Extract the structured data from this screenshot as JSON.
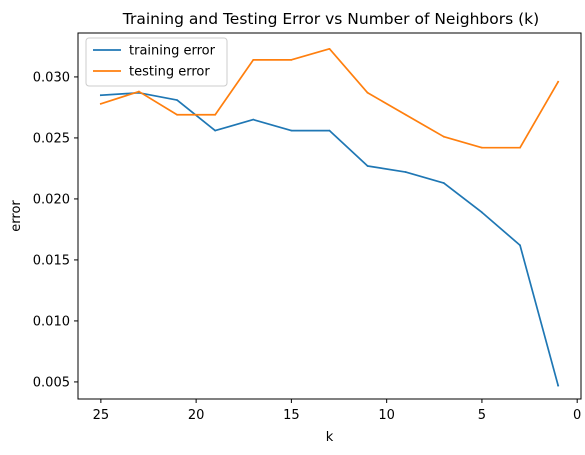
{
  "chart_data": {
    "type": "line",
    "title": "Training and Testing Error vs Number of Neighbors (k)",
    "xlabel": "k",
    "ylabel": "error",
    "x_inverted": true,
    "xlim": [
      26.2,
      -0.2
    ],
    "ylim": [
      0.0036,
      0.0336
    ],
    "xticks": [
      25,
      20,
      15,
      10,
      5,
      0
    ],
    "xtick_labels": [
      "25",
      "20",
      "15",
      "10",
      "5",
      "0"
    ],
    "yticks": [
      0.005,
      0.01,
      0.015,
      0.02,
      0.025,
      0.03
    ],
    "ytick_labels": [
      "0.005",
      "0.010",
      "0.015",
      "0.020",
      "0.025",
      "0.030"
    ],
    "grid": false,
    "legend_position": "upper-left",
    "x": [
      25,
      23,
      21,
      19,
      17,
      15,
      13,
      11,
      9,
      7,
      5,
      3,
      1
    ],
    "series": [
      {
        "name": "training error",
        "color": "#1f77b4",
        "values": [
          0.0285,
          0.0287,
          0.0281,
          0.0256,
          0.0265,
          0.0256,
          0.0256,
          0.0227,
          0.0222,
          0.0213,
          0.0189,
          0.0162,
          0.0047
        ]
      },
      {
        "name": "testing error",
        "color": "#ff7f0e",
        "values": [
          0.0278,
          0.0288,
          0.0269,
          0.0269,
          0.0314,
          0.0314,
          0.0323,
          0.0287,
          0.0269,
          0.0251,
          0.0242,
          0.0242,
          0.0296
        ]
      }
    ]
  }
}
